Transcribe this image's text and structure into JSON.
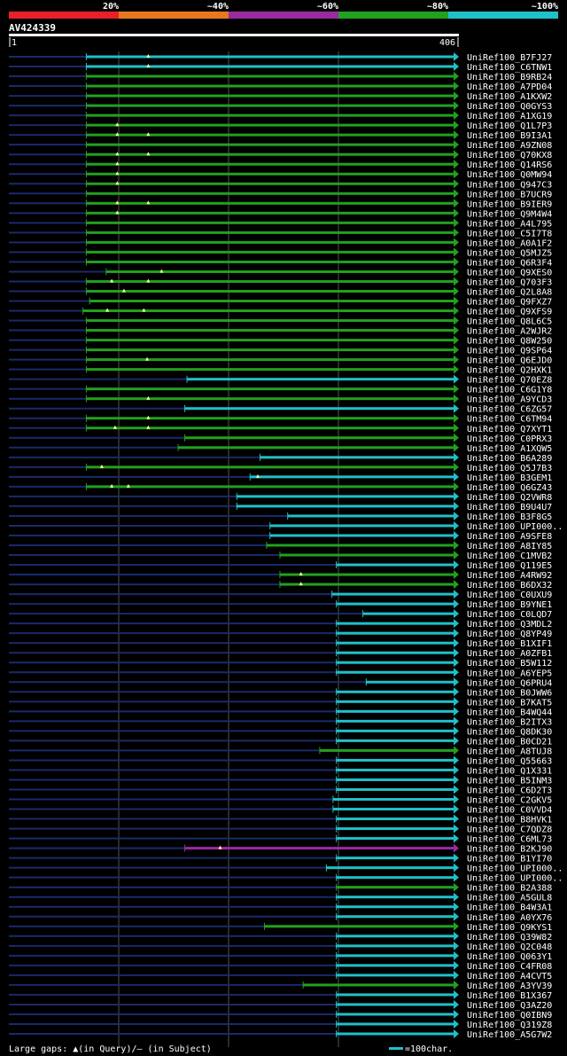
{
  "query": {
    "id": "AV424339",
    "start": "1",
    "end": "406",
    "length": 406
  },
  "scale": {
    "labels": [
      "20%",
      "~40%",
      "~60%",
      "~80%",
      "~100%"
    ],
    "colors": [
      "#e8202a",
      "#e87820",
      "#9a2aa0",
      "#22a020",
      "#20c0c8"
    ]
  },
  "colors": {
    "query_line": "#1a2a6a",
    "gap_mark": "#ffff99",
    "background": "#000000",
    "gridline": "#555555"
  },
  "footer": {
    "gaps_text": "Large gaps: ▲(in Query)/– (in Subject)",
    "scale_text": "=100char."
  },
  "hits": [
    {
      "id": "UniRef100_B7FJ27",
      "start": 70,
      "end": 406,
      "color": 4,
      "gaps": [
        126
      ]
    },
    {
      "id": "UniRef100_C6TNW1",
      "start": 70,
      "end": 406,
      "color": 4,
      "gaps": [
        126
      ]
    },
    {
      "id": "UniRef100_B9RB24",
      "start": 70,
      "end": 406,
      "color": 3
    },
    {
      "id": "UniRef100_A7PD04",
      "start": 70,
      "end": 406,
      "color": 3
    },
    {
      "id": "UniRef100_A1KXW2",
      "start": 70,
      "end": 406,
      "color": 3
    },
    {
      "id": "UniRef100_Q0GYS3",
      "start": 70,
      "end": 406,
      "color": 3
    },
    {
      "id": "UniRef100_A1XG19",
      "start": 70,
      "end": 406,
      "color": 3
    },
    {
      "id": "UniRef100_Q1L7P3",
      "start": 70,
      "end": 406,
      "color": 3,
      "gaps": [
        98
      ]
    },
    {
      "id": "UniRef100_B9I3A1",
      "start": 70,
      "end": 406,
      "color": 3,
      "gaps": [
        98,
        126
      ]
    },
    {
      "id": "UniRef100_A9ZN08",
      "start": 70,
      "end": 406,
      "color": 3
    },
    {
      "id": "UniRef100_Q70KX8",
      "start": 70,
      "end": 406,
      "color": 3,
      "gaps": [
        98,
        126
      ]
    },
    {
      "id": "UniRef100_Q14RS6",
      "start": 70,
      "end": 406,
      "color": 3,
      "gaps": [
        98
      ]
    },
    {
      "id": "UniRef100_Q0MW94",
      "start": 70,
      "end": 406,
      "color": 3,
      "gaps": [
        98
      ]
    },
    {
      "id": "UniRef100_Q947C3",
      "start": 70,
      "end": 406,
      "color": 3,
      "gaps": [
        98
      ]
    },
    {
      "id": "UniRef100_B7UCR9",
      "start": 70,
      "end": 406,
      "color": 3
    },
    {
      "id": "UniRef100_B9IER9",
      "start": 70,
      "end": 406,
      "color": 3,
      "gaps": [
        98,
        126
      ]
    },
    {
      "id": "UniRef100_Q9M4W4",
      "start": 70,
      "end": 406,
      "color": 3,
      "gaps": [
        98
      ]
    },
    {
      "id": "UniRef100_A4L795",
      "start": 70,
      "end": 406,
      "color": 3
    },
    {
      "id": "UniRef100_C5I7T8",
      "start": 70,
      "end": 406,
      "color": 3
    },
    {
      "id": "UniRef100_A0A1F2",
      "start": 70,
      "end": 406,
      "color": 3
    },
    {
      "id": "UniRef100_Q5MJZ5",
      "start": 70,
      "end": 406,
      "color": 3
    },
    {
      "id": "UniRef100_Q6R3F4",
      "start": 70,
      "end": 406,
      "color": 3
    },
    {
      "id": "UniRef100_Q9XES0",
      "start": 88,
      "end": 406,
      "color": 3,
      "gaps": [
        138
      ]
    },
    {
      "id": "UniRef100_Q703F3",
      "start": 70,
      "end": 406,
      "color": 3,
      "gaps": [
        93,
        126
      ]
    },
    {
      "id": "UniRef100_Q2L8A8",
      "start": 70,
      "end": 406,
      "color": 3,
      "gaps": [
        104
      ]
    },
    {
      "id": "UniRef100_Q9FXZ7",
      "start": 73,
      "end": 406,
      "color": 3
    },
    {
      "id": "UniRef100_Q9XFS9",
      "start": 67,
      "end": 406,
      "color": 3,
      "gaps": [
        89,
        122
      ]
    },
    {
      "id": "UniRef100_Q8L6C5",
      "start": 70,
      "end": 406,
      "color": 3
    },
    {
      "id": "UniRef100_A2WJR2",
      "start": 70,
      "end": 406,
      "color": 3
    },
    {
      "id": "UniRef100_Q8W250",
      "start": 70,
      "end": 406,
      "color": 3
    },
    {
      "id": "UniRef100_Q9SP64",
      "start": 70,
      "end": 406,
      "color": 3
    },
    {
      "id": "UniRef100_Q6EJD0",
      "start": 70,
      "end": 406,
      "color": 3,
      "gaps": [
        125
      ]
    },
    {
      "id": "UniRef100_Q2HXK1",
      "start": 70,
      "end": 406,
      "color": 3
    },
    {
      "id": "UniRef100_Q70EZ8",
      "start": 161,
      "end": 406,
      "color": 4
    },
    {
      "id": "UniRef100_C6G1Y8",
      "start": 70,
      "end": 406,
      "color": 3
    },
    {
      "id": "UniRef100_A9YCD3",
      "start": 70,
      "end": 406,
      "color": 3,
      "gaps": [
        126
      ]
    },
    {
      "id": "UniRef100_C6ZG57",
      "start": 159,
      "end": 406,
      "color": 4
    },
    {
      "id": "UniRef100_C6TM94",
      "start": 70,
      "end": 406,
      "color": 3,
      "gaps": [
        126
      ]
    },
    {
      "id": "UniRef100_Q7XYT1",
      "start": 70,
      "end": 406,
      "color": 3,
      "gaps": [
        96,
        126
      ]
    },
    {
      "id": "UniRef100_C0PRX3",
      "start": 159,
      "end": 406,
      "color": 3
    },
    {
      "id": "UniRef100_A1XQW5",
      "start": 153,
      "end": 406,
      "color": 3
    },
    {
      "id": "UniRef100_B6A289",
      "start": 227,
      "end": 406,
      "color": 4
    },
    {
      "id": "UniRef100_Q5J7B3",
      "start": 70,
      "end": 406,
      "color": 3,
      "gaps": [
        84
      ]
    },
    {
      "id": "UniRef100_B3GEM1",
      "start": 218,
      "end": 406,
      "color": 4,
      "gaps": [
        225
      ]
    },
    {
      "id": "UniRef100_Q6GZ43",
      "start": 70,
      "end": 406,
      "color": 3,
      "gaps": [
        93,
        108
      ]
    },
    {
      "id": "UniRef100_Q2VWR8",
      "start": 206,
      "end": 406,
      "color": 4
    },
    {
      "id": "UniRef100_B9U4U7",
      "start": 206,
      "end": 406,
      "color": 4
    },
    {
      "id": "UniRef100_B3F8G5",
      "start": 252,
      "end": 406,
      "color": 4
    },
    {
      "id": "UniRef100_UPI000..",
      "start": 236,
      "end": 406,
      "color": 4
    },
    {
      "id": "UniRef100_A9SFE8",
      "start": 236,
      "end": 406,
      "color": 4
    },
    {
      "id": "UniRef100_A8IY85",
      "start": 233,
      "end": 406,
      "color": 3
    },
    {
      "id": "UniRef100_C1MVB2",
      "start": 245,
      "end": 406,
      "color": 3
    },
    {
      "id": "UniRef100_Q119E5",
      "start": 296,
      "end": 406,
      "color": 4
    },
    {
      "id": "UniRef100_A4RW92",
      "start": 245,
      "end": 406,
      "color": 3,
      "gaps": [
        264
      ]
    },
    {
      "id": "UniRef100_B6DX32",
      "start": 245,
      "end": 406,
      "color": 3,
      "gaps": [
        264
      ]
    },
    {
      "id": "UniRef100_C0UXU9",
      "start": 292,
      "end": 406,
      "color": 4
    },
    {
      "id": "UniRef100_B9YNE1",
      "start": 296,
      "end": 406,
      "color": 4
    },
    {
      "id": "UniRef100_C0LQD7",
      "start": 320,
      "end": 406,
      "color": 4
    },
    {
      "id": "UniRef100_Q3MDL2",
      "start": 296,
      "end": 406,
      "color": 4
    },
    {
      "id": "UniRef100_Q8YP49",
      "start": 296,
      "end": 406,
      "color": 4
    },
    {
      "id": "UniRef100_B1XIF1",
      "start": 296,
      "end": 406,
      "color": 4
    },
    {
      "id": "UniRef100_A0ZFB1",
      "start": 296,
      "end": 406,
      "color": 4
    },
    {
      "id": "UniRef100_B5W112",
      "start": 296,
      "end": 406,
      "color": 4
    },
    {
      "id": "UniRef100_A6YEP5",
      "start": 296,
      "end": 406,
      "color": 4
    },
    {
      "id": "UniRef100_Q6PRU4",
      "start": 323,
      "end": 406,
      "color": 4
    },
    {
      "id": "UniRef100_B0JWW6",
      "start": 296,
      "end": 406,
      "color": 4
    },
    {
      "id": "UniRef100_B7KAT5",
      "start": 296,
      "end": 406,
      "color": 4
    },
    {
      "id": "UniRef100_B4WQ44",
      "start": 296,
      "end": 406,
      "color": 4
    },
    {
      "id": "UniRef100_B2ITX3",
      "start": 296,
      "end": 406,
      "color": 4
    },
    {
      "id": "UniRef100_Q8DK30",
      "start": 296,
      "end": 406,
      "color": 4
    },
    {
      "id": "UniRef100_B0CD21",
      "start": 296,
      "end": 406,
      "color": 4
    },
    {
      "id": "UniRef100_A8TUJ8",
      "start": 281,
      "end": 406,
      "color": 3
    },
    {
      "id": "UniRef100_Q55663",
      "start": 296,
      "end": 406,
      "color": 4
    },
    {
      "id": "UniRef100_Q1X331",
      "start": 296,
      "end": 406,
      "color": 4
    },
    {
      "id": "UniRef100_B5INM3",
      "start": 296,
      "end": 406,
      "color": 4
    },
    {
      "id": "UniRef100_C6D2T3",
      "start": 296,
      "end": 406,
      "color": 4
    },
    {
      "id": "UniRef100_C2GKV5",
      "start": 293,
      "end": 406,
      "color": 4
    },
    {
      "id": "UniRef100_C0VVD4",
      "start": 293,
      "end": 406,
      "color": 4
    },
    {
      "id": "UniRef100_B8HVK1",
      "start": 296,
      "end": 406,
      "color": 4
    },
    {
      "id": "UniRef100_C7QDZ8",
      "start": 296,
      "end": 406,
      "color": 4
    },
    {
      "id": "UniRef100_C6ML73",
      "start": 296,
      "end": 406,
      "color": 4
    },
    {
      "id": "UniRef100_B2KJ90",
      "start": 159,
      "end": 406,
      "color": 2,
      "gaps": [
        191
      ]
    },
    {
      "id": "UniRef100_B1YI70",
      "start": 296,
      "end": 406,
      "color": 4
    },
    {
      "id": "UniRef100_UPI000..",
      "start": 287,
      "end": 406,
      "color": 4
    },
    {
      "id": "UniRef100_UPI000..",
      "start": 296,
      "end": 406,
      "color": 4
    },
    {
      "id": "UniRef100_B2A388",
      "start": 296,
      "end": 406,
      "color": 3
    },
    {
      "id": "UniRef100_A5GUL8",
      "start": 296,
      "end": 406,
      "color": 4
    },
    {
      "id": "UniRef100_B4W3A1",
      "start": 296,
      "end": 406,
      "color": 4
    },
    {
      "id": "UniRef100_A0YX76",
      "start": 296,
      "end": 406,
      "color": 4
    },
    {
      "id": "UniRef100_Q9KYS1",
      "start": 231,
      "end": 406,
      "color": 3
    },
    {
      "id": "UniRef100_Q39W82",
      "start": 296,
      "end": 406,
      "color": 4
    },
    {
      "id": "UniRef100_Q2C048",
      "start": 296,
      "end": 406,
      "color": 4
    },
    {
      "id": "UniRef100_Q063Y1",
      "start": 296,
      "end": 406,
      "color": 4
    },
    {
      "id": "UniRef100_C4FR08",
      "start": 296,
      "end": 406,
      "color": 4
    },
    {
      "id": "UniRef100_A4CVT5",
      "start": 296,
      "end": 406,
      "color": 4
    },
    {
      "id": "UniRef100_A3YV39",
      "start": 266,
      "end": 406,
      "color": 3
    },
    {
      "id": "UniRef100_B1X367",
      "start": 296,
      "end": 406,
      "color": 4
    },
    {
      "id": "UniRef100_Q3AZ20",
      "start": 296,
      "end": 406,
      "color": 4
    },
    {
      "id": "UniRef100_Q0IBN9",
      "start": 296,
      "end": 406,
      "color": 4
    },
    {
      "id": "UniRef100_Q319Z8",
      "start": 296,
      "end": 406,
      "color": 4
    },
    {
      "id": "UniRef100_A5G7W2",
      "start": 296,
      "end": 406,
      "color": 4
    }
  ]
}
